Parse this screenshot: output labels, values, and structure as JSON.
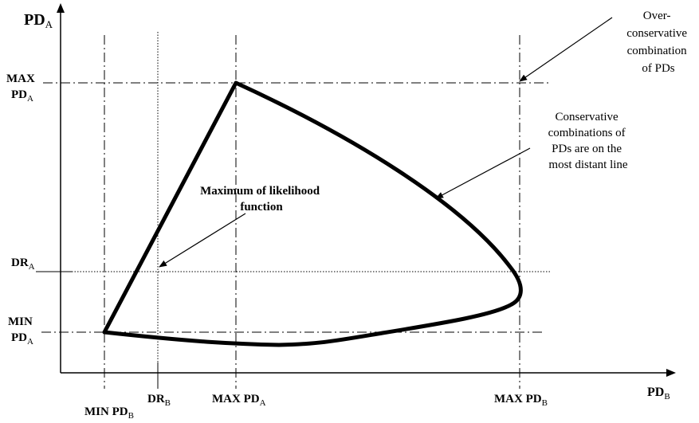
{
  "axes": {
    "y_label": "PD",
    "y_label_sub": "A",
    "x_label": "PD",
    "x_label_sub": "B"
  },
  "y_ticks": {
    "max_line1": "MAX",
    "max_line2": "PD",
    "max_line2_sub": "A",
    "dr": "DR",
    "dr_sub": "A",
    "min_line1": "MIN",
    "min_line2": "PD",
    "min_line2_sub": "A"
  },
  "x_ticks": {
    "min": "MIN PD",
    "min_sub": "B",
    "dr": "DR",
    "dr_sub": "B",
    "max_a": "MAX PD",
    "max_a_sub": "A",
    "max_b": "MAX PD",
    "max_b_sub": "B"
  },
  "annotations": {
    "over_conservative": [
      "Over-",
      "conservative",
      "combination",
      "of PDs"
    ],
    "conservative": [
      "Conservative",
      "combinations of",
      "PDs are on the",
      "most distant line"
    ],
    "likelihood": [
      "Maximum of likelihood",
      "function"
    ]
  },
  "colors": {
    "ink": "#000000",
    "background": "#ffffff"
  }
}
